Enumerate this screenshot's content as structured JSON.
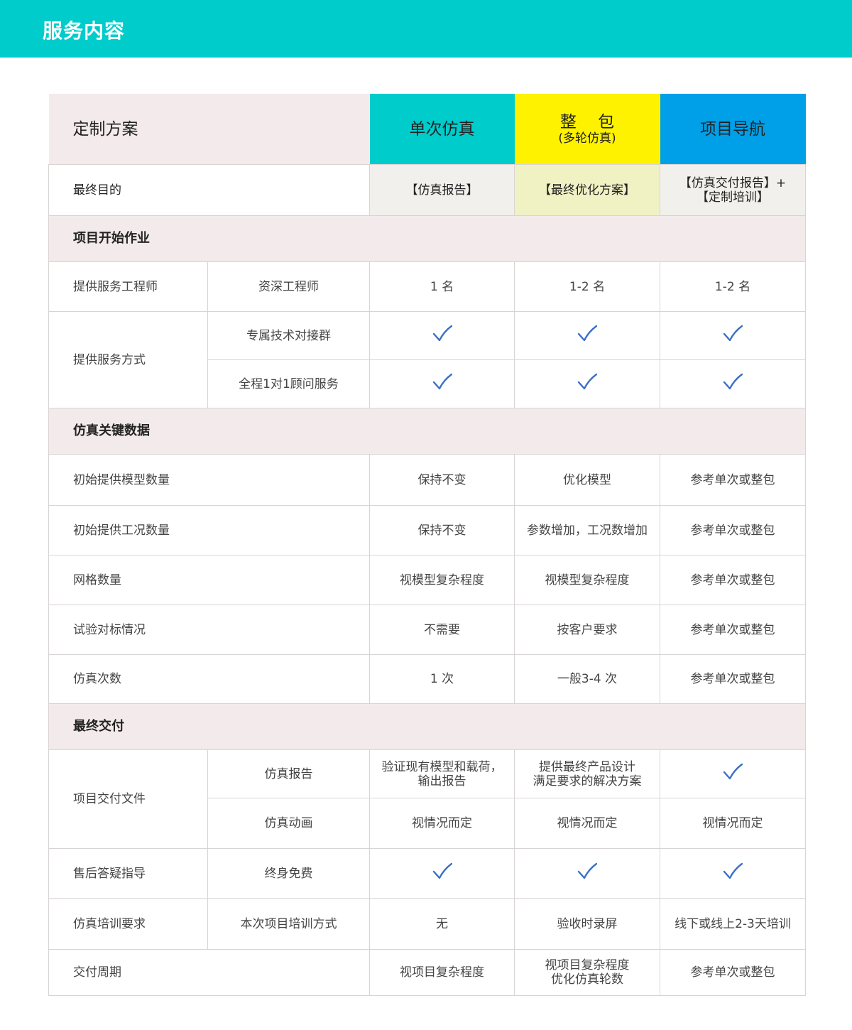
{
  "page_title": "服务内容",
  "colors": {
    "banner": "#00cccc",
    "plan1": "#00cccc",
    "plan2": "#fff200",
    "plan3": "#00a0e9",
    "section_bg": "#f3eaeb",
    "check": "#3a6fc4"
  },
  "header": {
    "label": "定制方案",
    "plans": [
      {
        "name": "单次仿真",
        "sub": "",
        "color": "#00cccc"
      },
      {
        "name": "整　 包",
        "sub": "(多轮仿真)",
        "color": "#fff200"
      },
      {
        "name": "项目导航",
        "sub": "",
        "color": "#00a0e9"
      }
    ]
  },
  "goal": {
    "label": "最终目的",
    "cells": [
      "【仿真报告】",
      "【最终优化方案】",
      "【仿真交付报告】+\n【定制培训】"
    ],
    "cell_colors": [
      "#f1f0ec",
      "#f1f2c4",
      "#f1f0ec"
    ]
  },
  "rows": [
    {
      "type": "section",
      "label": "项目开始作业"
    },
    {
      "type": "row",
      "label": "提供服务工程师",
      "sub": "资深工程师",
      "cells": [
        "1 名",
        "1-2 名",
        "1-2 名"
      ],
      "height": 70
    },
    {
      "type": "row",
      "label": "提供服务方式",
      "span": 2,
      "sub": "专属技术对接群",
      "cells": [
        "check-icon",
        "check-icon",
        "check-icon"
      ],
      "height": 68
    },
    {
      "type": "row",
      "sub": "全程1对1顾问服务",
      "cells": [
        "check-icon",
        "check-icon",
        "check-icon"
      ],
      "height": 68
    },
    {
      "type": "section",
      "label": "仿真关键数据"
    },
    {
      "type": "row",
      "label": "初始提供模型数量",
      "cells": [
        "保持不变",
        "优化模型",
        "参考单次或整包"
      ],
      "height": 72
    },
    {
      "type": "row",
      "label": "初始提供工况数量",
      "cells": [
        "保持不变",
        "参数增加，工况数增加",
        "参考单次或整包"
      ],
      "height": 70
    },
    {
      "type": "row",
      "label": "网格数量",
      "cells": [
        "视模型复杂程度",
        "视模型复杂程度",
        "参考单次或整包"
      ],
      "height": 70
    },
    {
      "type": "row",
      "label": "试验对标情况",
      "cells": [
        "不需要",
        "按客户要求",
        "参考单次或整包"
      ],
      "height": 70
    },
    {
      "type": "row",
      "label": "仿真次数",
      "cells": [
        "1 次",
        "一般3-4 次",
        "参考单次或整包"
      ],
      "height": 69
    },
    {
      "type": "section",
      "label": "最终交付"
    },
    {
      "type": "row",
      "label": "项目交付文件",
      "span": 2,
      "sub": "仿真报告",
      "cells": [
        "验证现有模型和载荷，\n输出报告",
        "提供最终产品设计\n满足要求的解决方案",
        "check-icon"
      ],
      "height": 68
    },
    {
      "type": "row",
      "sub": "仿真动画",
      "cells": [
        "视情况而定",
        "视情况而定",
        "视情况而定"
      ],
      "height": 71
    },
    {
      "type": "row",
      "label": "售后答疑指导",
      "sub": "终身免费",
      "cells": [
        "check-icon",
        "check-icon",
        "check-icon"
      ],
      "height": 70
    },
    {
      "type": "row",
      "label": "仿真培训要求",
      "sub": "本次项目培训方式",
      "cells": [
        "无",
        "验收时录屏",
        "线下或线上2-3天培训"
      ],
      "height": 72
    },
    {
      "type": "row",
      "label": "交付周期",
      "cells": [
        "视项目复杂程度",
        "视项目复杂程度\n优化仿真轮数",
        "参考单次或整包"
      ],
      "height": 65
    }
  ]
}
